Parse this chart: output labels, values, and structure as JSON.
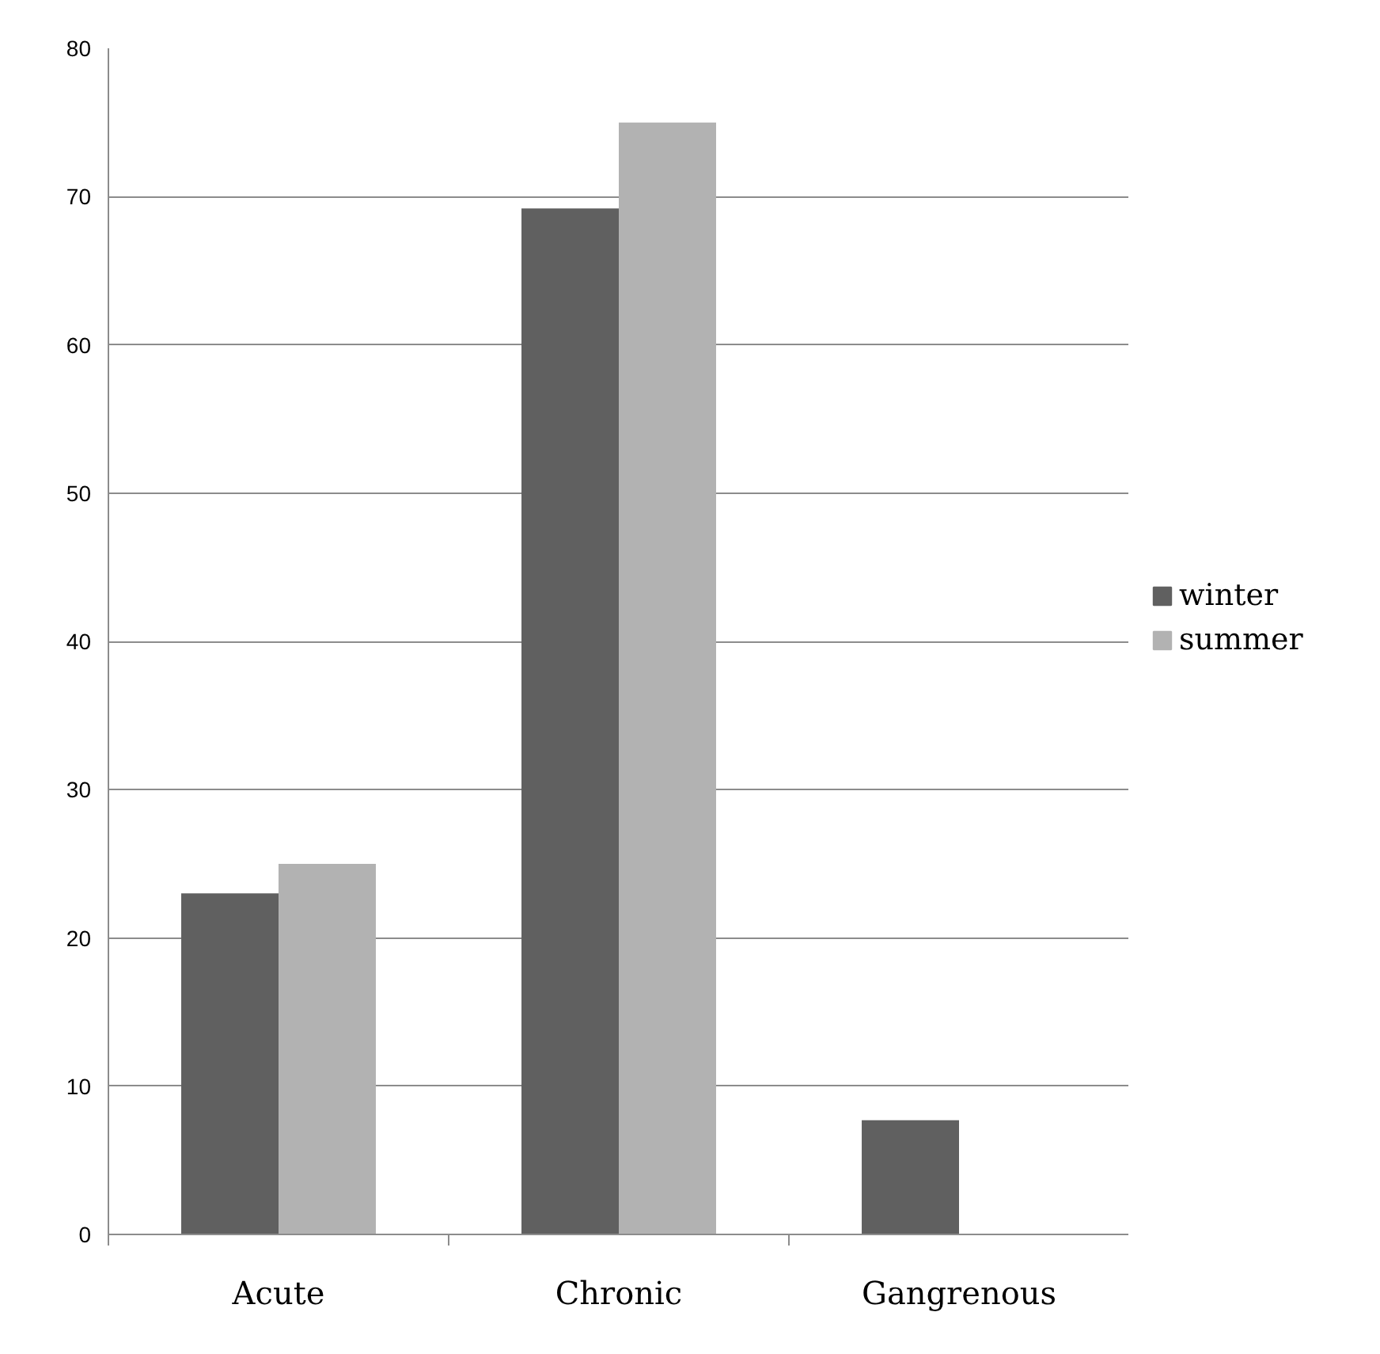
{
  "chart_data": {
    "type": "bar",
    "categories": [
      "Acute",
      "Chronic",
      "Gangrenous"
    ],
    "series": [
      {
        "name": "winter",
        "color": "#606060",
        "values": [
          23,
          69.2,
          7.7
        ]
      },
      {
        "name": "summer",
        "color": "#b2b2b2",
        "values": [
          25,
          75,
          null
        ]
      }
    ],
    "ylim": [
      0,
      80
    ],
    "yticks": [
      0,
      10,
      20,
      30,
      40,
      50,
      60,
      70,
      80
    ],
    "grid": "y",
    "legend": "right"
  }
}
